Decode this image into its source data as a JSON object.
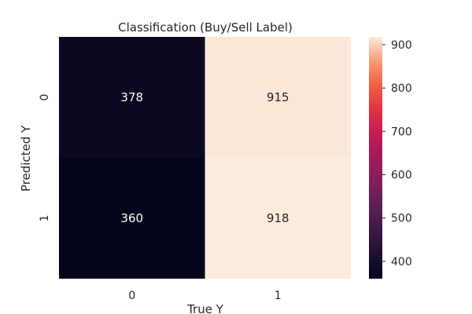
{
  "chart_data": {
    "type": "heatmap",
    "title": "Classification (Buy/Sell Label)",
    "xlabel": "True Y",
    "ylabel": "Predicted Y",
    "x_categories": [
      "0",
      "1"
    ],
    "y_categories": [
      "0",
      "1"
    ],
    "values": [
      [
        378,
        915
      ],
      [
        360,
        918
      ]
    ],
    "colorbar": {
      "min": 360,
      "max": 918,
      "ticks": [
        400,
        500,
        600,
        700,
        800,
        900
      ],
      "colormap": "rocket"
    },
    "grid": false
  }
}
